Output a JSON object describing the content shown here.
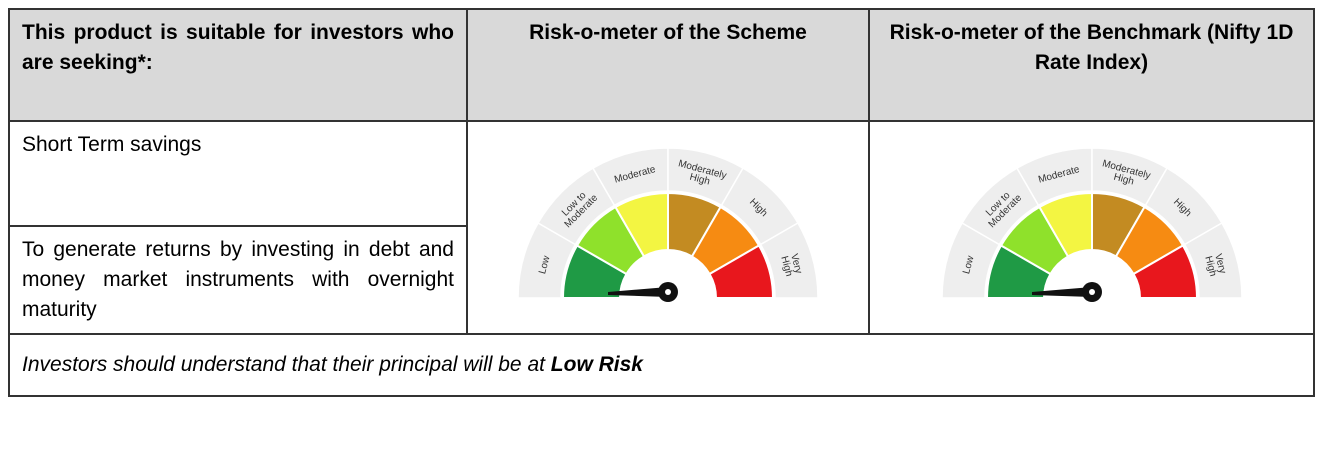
{
  "table": {
    "headers": [
      "This product is suitable for investors who are seeking*:",
      "Risk-o-meter of the Scheme",
      "Risk-o-meter of the Benchmark (Nifty 1D Rate Index)"
    ],
    "objectives": [
      "Short Term savings",
      "To generate returns by investing in debt and money market instruments with overnight maturity"
    ],
    "riskometer_labels": [
      [
        "Low"
      ],
      [
        "Low to",
        "Moderate"
      ],
      [
        "Moderate"
      ],
      [
        "Moderately",
        "High"
      ],
      [
        "High"
      ],
      [
        "Very",
        "High"
      ]
    ],
    "footer": {
      "text": "Investors should understand that their principal will be at ",
      "emphasis": "Low Risk"
    }
  }
}
